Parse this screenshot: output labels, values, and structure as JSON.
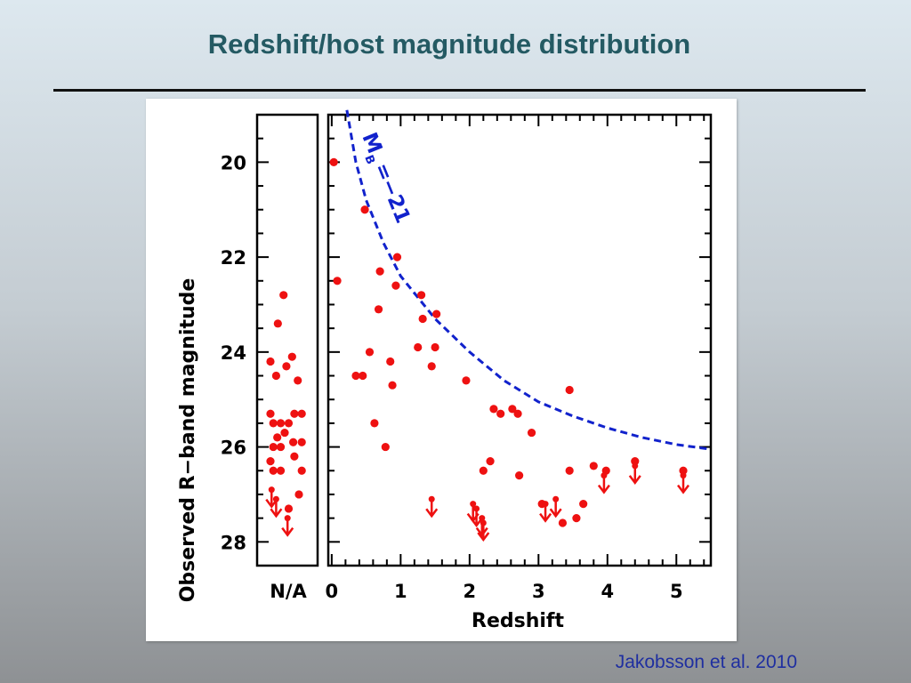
{
  "slide": {
    "title": "Redshift/host magnitude distribution",
    "citation": "Jakobsson et al. 2010"
  },
  "chart_data": {
    "type": "scatter",
    "title": "",
    "xlabel": "Redshift",
    "ylabel": "Observed R−band magnitude",
    "xlim": [
      -0.05,
      5.5
    ],
    "ylim": [
      19,
      28.5
    ],
    "y_inverted": true,
    "x_ticks": [
      "0",
      "1",
      "2",
      "3",
      "4",
      "5"
    ],
    "y_ticks": [
      "20",
      "22",
      "24",
      "26",
      "28"
    ],
    "na_label": "N/A",
    "point_color": "#ee1111",
    "curve_color": "#1122cc",
    "curve_label": "M_B = −21",
    "curve_label_parts": {
      "base": "M",
      "sub": "B",
      "rest": "=−21"
    },
    "detections": [
      [
        0.03,
        20.0
      ],
      [
        0.08,
        22.5
      ],
      [
        0.35,
        24.5
      ],
      [
        0.45,
        24.5
      ],
      [
        0.48,
        21.0
      ],
      [
        0.55,
        24.0
      ],
      [
        0.62,
        25.5
      ],
      [
        0.68,
        23.1
      ],
      [
        0.7,
        22.3
      ],
      [
        0.78,
        26.0
      ],
      [
        0.85,
        24.2
      ],
      [
        0.88,
        24.7
      ],
      [
        0.93,
        22.6
      ],
      [
        0.95,
        22.0
      ],
      [
        1.25,
        23.9
      ],
      [
        1.3,
        22.8
      ],
      [
        1.32,
        23.3
      ],
      [
        1.45,
        24.3
      ],
      [
        1.5,
        23.9
      ],
      [
        1.52,
        23.2
      ],
      [
        1.95,
        24.6
      ],
      [
        2.2,
        26.5
      ],
      [
        2.3,
        26.3
      ],
      [
        2.35,
        25.2
      ],
      [
        2.45,
        25.3
      ],
      [
        2.62,
        25.2
      ],
      [
        2.7,
        25.3
      ],
      [
        2.72,
        26.6
      ],
      [
        2.9,
        25.7
      ],
      [
        3.05,
        27.2
      ],
      [
        3.35,
        27.6
      ],
      [
        3.45,
        24.8
      ],
      [
        3.45,
        26.5
      ],
      [
        3.55,
        27.5
      ],
      [
        3.65,
        27.2
      ],
      [
        3.8,
        26.4
      ],
      [
        3.98,
        26.5
      ],
      [
        4.4,
        26.3
      ],
      [
        5.1,
        26.5
      ]
    ],
    "upper_limits": [
      [
        1.45,
        27.1
      ],
      [
        2.05,
        27.2
      ],
      [
        2.1,
        27.3
      ],
      [
        2.18,
        27.5
      ],
      [
        2.2,
        27.6
      ],
      [
        3.1,
        27.2
      ],
      [
        3.25,
        27.1
      ],
      [
        3.95,
        26.6
      ],
      [
        4.4,
        26.4
      ],
      [
        5.1,
        26.6
      ]
    ],
    "na_detections": [
      [
        0.23,
        22.8
      ],
      [
        0.13,
        23.4
      ],
      [
        0.0,
        24.2
      ],
      [
        0.1,
        24.5
      ],
      [
        0.38,
        24.1
      ],
      [
        0.28,
        24.3
      ],
      [
        0.48,
        24.6
      ],
      [
        0.0,
        25.3
      ],
      [
        0.42,
        25.3
      ],
      [
        0.55,
        25.3
      ],
      [
        0.05,
        25.5
      ],
      [
        0.18,
        25.5
      ],
      [
        0.32,
        25.5
      ],
      [
        0.12,
        25.8
      ],
      [
        0.25,
        25.7
      ],
      [
        0.4,
        25.9
      ],
      [
        0.55,
        25.9
      ],
      [
        0.05,
        26.0
      ],
      [
        0.18,
        26.0
      ],
      [
        0.0,
        26.3
      ],
      [
        0.42,
        26.2
      ],
      [
        0.05,
        26.5
      ],
      [
        0.18,
        26.5
      ],
      [
        0.55,
        26.5
      ],
      [
        0.5,
        27.0
      ],
      [
        0.32,
        27.3
      ]
    ],
    "na_upper_limits": [
      [
        0.02,
        26.9
      ],
      [
        0.1,
        27.1
      ],
      [
        0.3,
        27.5
      ]
    ]
  }
}
